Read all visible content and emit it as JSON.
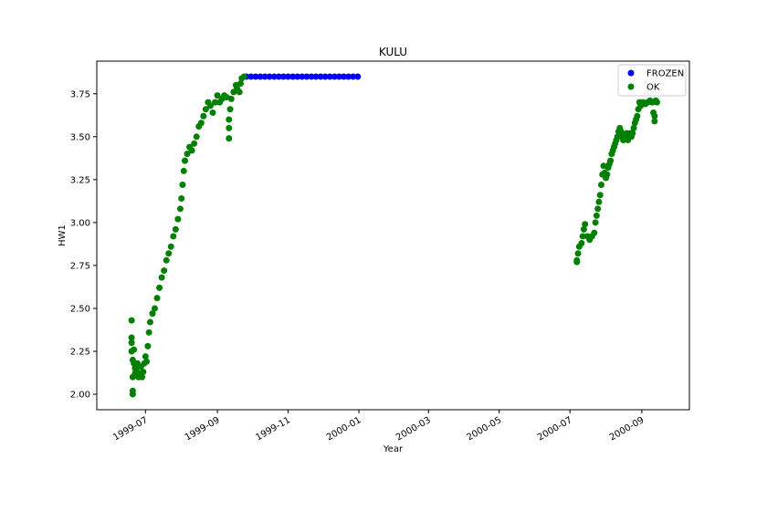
{
  "chart_data": {
    "type": "scatter",
    "title": "KULU",
    "xlabel": "Year",
    "ylabel": "HW1",
    "x_axis_type": "date",
    "xlim": [
      "1999-05-20",
      "2000-10-12"
    ],
    "ylim": [
      1.91,
      3.94
    ],
    "x_ticks": [
      "1999-07-01",
      "1999-09-01",
      "1999-11-01",
      "2000-01-01",
      "2000-03-01",
      "2000-05-01",
      "2000-07-01",
      "2000-09-01"
    ],
    "x_tick_labels": [
      "1999-07",
      "1999-09",
      "1999-11",
      "2000-01",
      "2000-03",
      "2000-05",
      "2000-07",
      "2000-09"
    ],
    "y_ticks": [
      2.0,
      2.25,
      2.5,
      2.75,
      3.0,
      3.25,
      3.5,
      3.75
    ],
    "y_tick_labels": [
      "2.00",
      "2.25",
      "2.50",
      "2.75",
      "3.00",
      "3.25",
      "3.50",
      "3.75"
    ],
    "grid": false,
    "legend_position": "top-right",
    "series": [
      {
        "name": "FROZEN",
        "color": "#0000ff",
        "points": [
          [
            "1999-09-26",
            3.85
          ],
          [
            "1999-09-30",
            3.85
          ],
          [
            "1999-10-04",
            3.85
          ],
          [
            "1999-10-08",
            3.85
          ],
          [
            "1999-10-12",
            3.85
          ],
          [
            "1999-10-16",
            3.85
          ],
          [
            "1999-10-20",
            3.85
          ],
          [
            "1999-10-24",
            3.85
          ],
          [
            "1999-10-28",
            3.85
          ],
          [
            "1999-11-01",
            3.85
          ],
          [
            "1999-11-05",
            3.85
          ],
          [
            "1999-11-09",
            3.85
          ],
          [
            "1999-11-13",
            3.85
          ],
          [
            "1999-11-17",
            3.85
          ],
          [
            "1999-11-21",
            3.85
          ],
          [
            "1999-11-25",
            3.85
          ],
          [
            "1999-11-29",
            3.85
          ],
          [
            "1999-12-03",
            3.85
          ],
          [
            "1999-12-07",
            3.85
          ],
          [
            "1999-12-11",
            3.85
          ],
          [
            "1999-12-15",
            3.85
          ],
          [
            "1999-12-19",
            3.85
          ],
          [
            "1999-12-23",
            3.85
          ],
          [
            "1999-12-27",
            3.85
          ],
          [
            "1999-12-31",
            3.85
          ]
        ]
      },
      {
        "name": "OK",
        "color": "#008000",
        "points": [
          [
            "1999-06-19",
            2.43
          ],
          [
            "1999-06-19",
            2.33
          ],
          [
            "1999-06-19",
            2.3
          ],
          [
            "1999-06-19",
            2.25
          ],
          [
            "1999-06-20",
            2.02
          ],
          [
            "1999-06-20",
            2.0
          ],
          [
            "1999-06-20",
            2.1
          ],
          [
            "1999-06-20",
            2.2
          ],
          [
            "1999-06-21",
            2.26
          ],
          [
            "1999-06-21",
            2.18
          ],
          [
            "1999-06-22",
            2.15
          ],
          [
            "1999-06-22",
            2.12
          ],
          [
            "1999-06-23",
            2.14
          ],
          [
            "1999-06-24",
            2.18
          ],
          [
            "1999-06-25",
            2.1
          ],
          [
            "1999-06-26",
            2.12
          ],
          [
            "1999-06-27",
            2.16
          ],
          [
            "1999-06-28",
            2.1
          ],
          [
            "1999-06-29",
            2.13
          ],
          [
            "1999-06-30",
            2.18
          ],
          [
            "1999-07-01",
            2.22
          ],
          [
            "1999-07-02",
            2.19
          ],
          [
            "1999-07-03",
            2.28
          ],
          [
            "1999-07-04",
            2.36
          ],
          [
            "1999-07-05",
            2.42
          ],
          [
            "1999-07-07",
            2.47
          ],
          [
            "1999-07-09",
            2.5
          ],
          [
            "1999-07-11",
            2.56
          ],
          [
            "1999-07-13",
            2.62
          ],
          [
            "1999-07-15",
            2.68
          ],
          [
            "1999-07-17",
            2.72
          ],
          [
            "1999-07-19",
            2.78
          ],
          [
            "1999-07-21",
            2.82
          ],
          [
            "1999-07-23",
            2.86
          ],
          [
            "1999-07-25",
            2.92
          ],
          [
            "1999-07-27",
            2.96
          ],
          [
            "1999-07-29",
            3.02
          ],
          [
            "1999-07-31",
            3.08
          ],
          [
            "1999-08-01",
            3.14
          ],
          [
            "1999-08-02",
            3.22
          ],
          [
            "1999-08-03",
            3.3
          ],
          [
            "1999-08-04",
            3.36
          ],
          [
            "1999-08-06",
            3.4
          ],
          [
            "1999-08-08",
            3.44
          ],
          [
            "1999-08-10",
            3.42
          ],
          [
            "1999-08-12",
            3.46
          ],
          [
            "1999-08-14",
            3.5
          ],
          [
            "1999-08-16",
            3.56
          ],
          [
            "1999-08-18",
            3.58
          ],
          [
            "1999-08-20",
            3.62
          ],
          [
            "1999-08-22",
            3.66
          ],
          [
            "1999-08-24",
            3.7
          ],
          [
            "1999-08-26",
            3.68
          ],
          [
            "1999-08-28",
            3.64
          ],
          [
            "1999-08-30",
            3.7
          ],
          [
            "1999-09-01",
            3.74
          ],
          [
            "1999-09-03",
            3.7
          ],
          [
            "1999-09-05",
            3.72
          ],
          [
            "1999-09-07",
            3.74
          ],
          [
            "1999-09-09",
            3.73
          ],
          [
            "1999-09-11",
            3.6
          ],
          [
            "1999-09-11",
            3.55
          ],
          [
            "1999-09-11",
            3.49
          ],
          [
            "1999-09-12",
            3.66
          ],
          [
            "1999-09-13",
            3.72
          ],
          [
            "1999-09-15",
            3.76
          ],
          [
            "1999-09-17",
            3.8
          ],
          [
            "1999-09-18",
            3.78
          ],
          [
            "1999-09-20",
            3.76
          ],
          [
            "1999-09-21",
            3.81
          ],
          [
            "1999-09-22",
            3.84
          ],
          [
            "1999-09-24",
            3.85
          ],
          [
            "2000-07-07",
            2.77
          ],
          [
            "2000-07-07",
            2.78
          ],
          [
            "2000-07-08",
            2.82
          ],
          [
            "2000-07-09",
            2.86
          ],
          [
            "2000-07-11",
            2.88
          ],
          [
            "2000-07-12",
            2.92
          ],
          [
            "2000-07-13",
            2.96
          ],
          [
            "2000-07-14",
            2.99
          ],
          [
            "2000-07-16",
            2.92
          ],
          [
            "2000-07-18",
            2.9
          ],
          [
            "2000-07-20",
            2.92
          ],
          [
            "2000-07-22",
            2.94
          ],
          [
            "2000-07-23",
            3.0
          ],
          [
            "2000-07-24",
            3.04
          ],
          [
            "2000-07-25",
            3.08
          ],
          [
            "2000-07-26",
            3.12
          ],
          [
            "2000-07-27",
            3.16
          ],
          [
            "2000-07-28",
            3.22
          ],
          [
            "2000-07-29",
            3.28
          ],
          [
            "2000-07-30",
            3.33
          ],
          [
            "2000-07-31",
            3.29
          ],
          [
            "2000-08-01",
            3.26
          ],
          [
            "2000-08-02",
            3.28
          ],
          [
            "2000-08-03",
            3.32
          ],
          [
            "2000-08-04",
            3.34
          ],
          [
            "2000-08-05",
            3.36
          ],
          [
            "2000-08-06",
            3.4
          ],
          [
            "2000-08-07",
            3.42
          ],
          [
            "2000-08-08",
            3.44
          ],
          [
            "2000-08-09",
            3.46
          ],
          [
            "2000-08-10",
            3.48
          ],
          [
            "2000-08-11",
            3.5
          ],
          [
            "2000-08-12",
            3.53
          ],
          [
            "2000-08-13",
            3.55
          ],
          [
            "2000-08-14",
            3.53
          ],
          [
            "2000-08-15",
            3.5
          ],
          [
            "2000-08-16",
            3.48
          ],
          [
            "2000-08-17",
            3.49
          ],
          [
            "2000-08-18",
            3.5
          ],
          [
            "2000-08-19",
            3.52
          ],
          [
            "2000-08-20",
            3.48
          ],
          [
            "2000-08-21",
            3.5
          ],
          [
            "2000-08-22",
            3.52
          ],
          [
            "2000-08-23",
            3.5
          ],
          [
            "2000-08-24",
            3.52
          ],
          [
            "2000-08-25",
            3.55
          ],
          [
            "2000-08-26",
            3.58
          ],
          [
            "2000-08-27",
            3.6
          ],
          [
            "2000-08-28",
            3.62
          ],
          [
            "2000-08-29",
            3.66
          ],
          [
            "2000-08-30",
            3.7
          ],
          [
            "2000-08-31",
            3.68
          ],
          [
            "2000-09-02",
            3.7
          ],
          [
            "2000-09-04",
            3.69
          ],
          [
            "2000-09-06",
            3.7
          ],
          [
            "2000-09-08",
            3.71
          ],
          [
            "2000-09-10",
            3.7
          ],
          [
            "2000-09-11",
            3.64
          ],
          [
            "2000-09-12",
            3.62
          ],
          [
            "2000-09-12",
            3.59
          ],
          [
            "2000-09-13",
            3.71
          ],
          [
            "2000-09-14",
            3.7
          ]
        ]
      }
    ]
  }
}
